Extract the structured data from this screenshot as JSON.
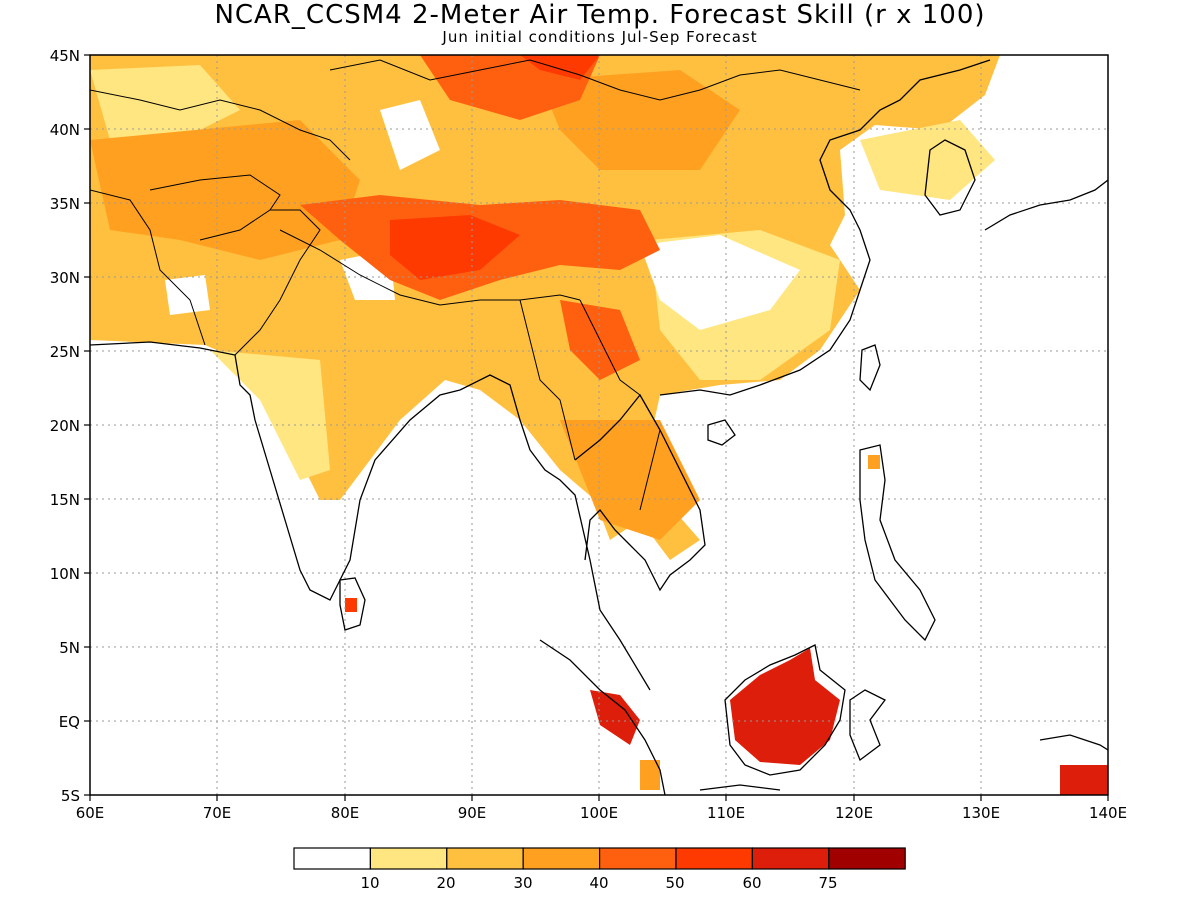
{
  "title": "NCAR_CCSM4 2-Meter Air Temp. Forecast Skill (r x 100)",
  "subtitle": "Jun initial conditions   Jul-Sep Forecast",
  "map": {
    "lon_labels": [
      "60E",
      "70E",
      "80E",
      "90E",
      "100E",
      "110E",
      "120E",
      "130E",
      "140E"
    ],
    "lat_labels": [
      "45N",
      "40N",
      "35N",
      "30N",
      "25N",
      "20N",
      "15N",
      "10N",
      "5N",
      "EQ",
      "5S"
    ],
    "grid_style": "dotted gray",
    "region": "South and East Asia"
  },
  "colorbar": {
    "colors": [
      "#ffffff",
      "#ffe680",
      "#ffc040",
      "#ffa020",
      "#ff6010",
      "#ff3a00",
      "#dc1e0a",
      "#a00000"
    ],
    "tick_labels": [
      "10",
      "20",
      "30",
      "40",
      "50",
      "60",
      "75"
    ]
  }
}
